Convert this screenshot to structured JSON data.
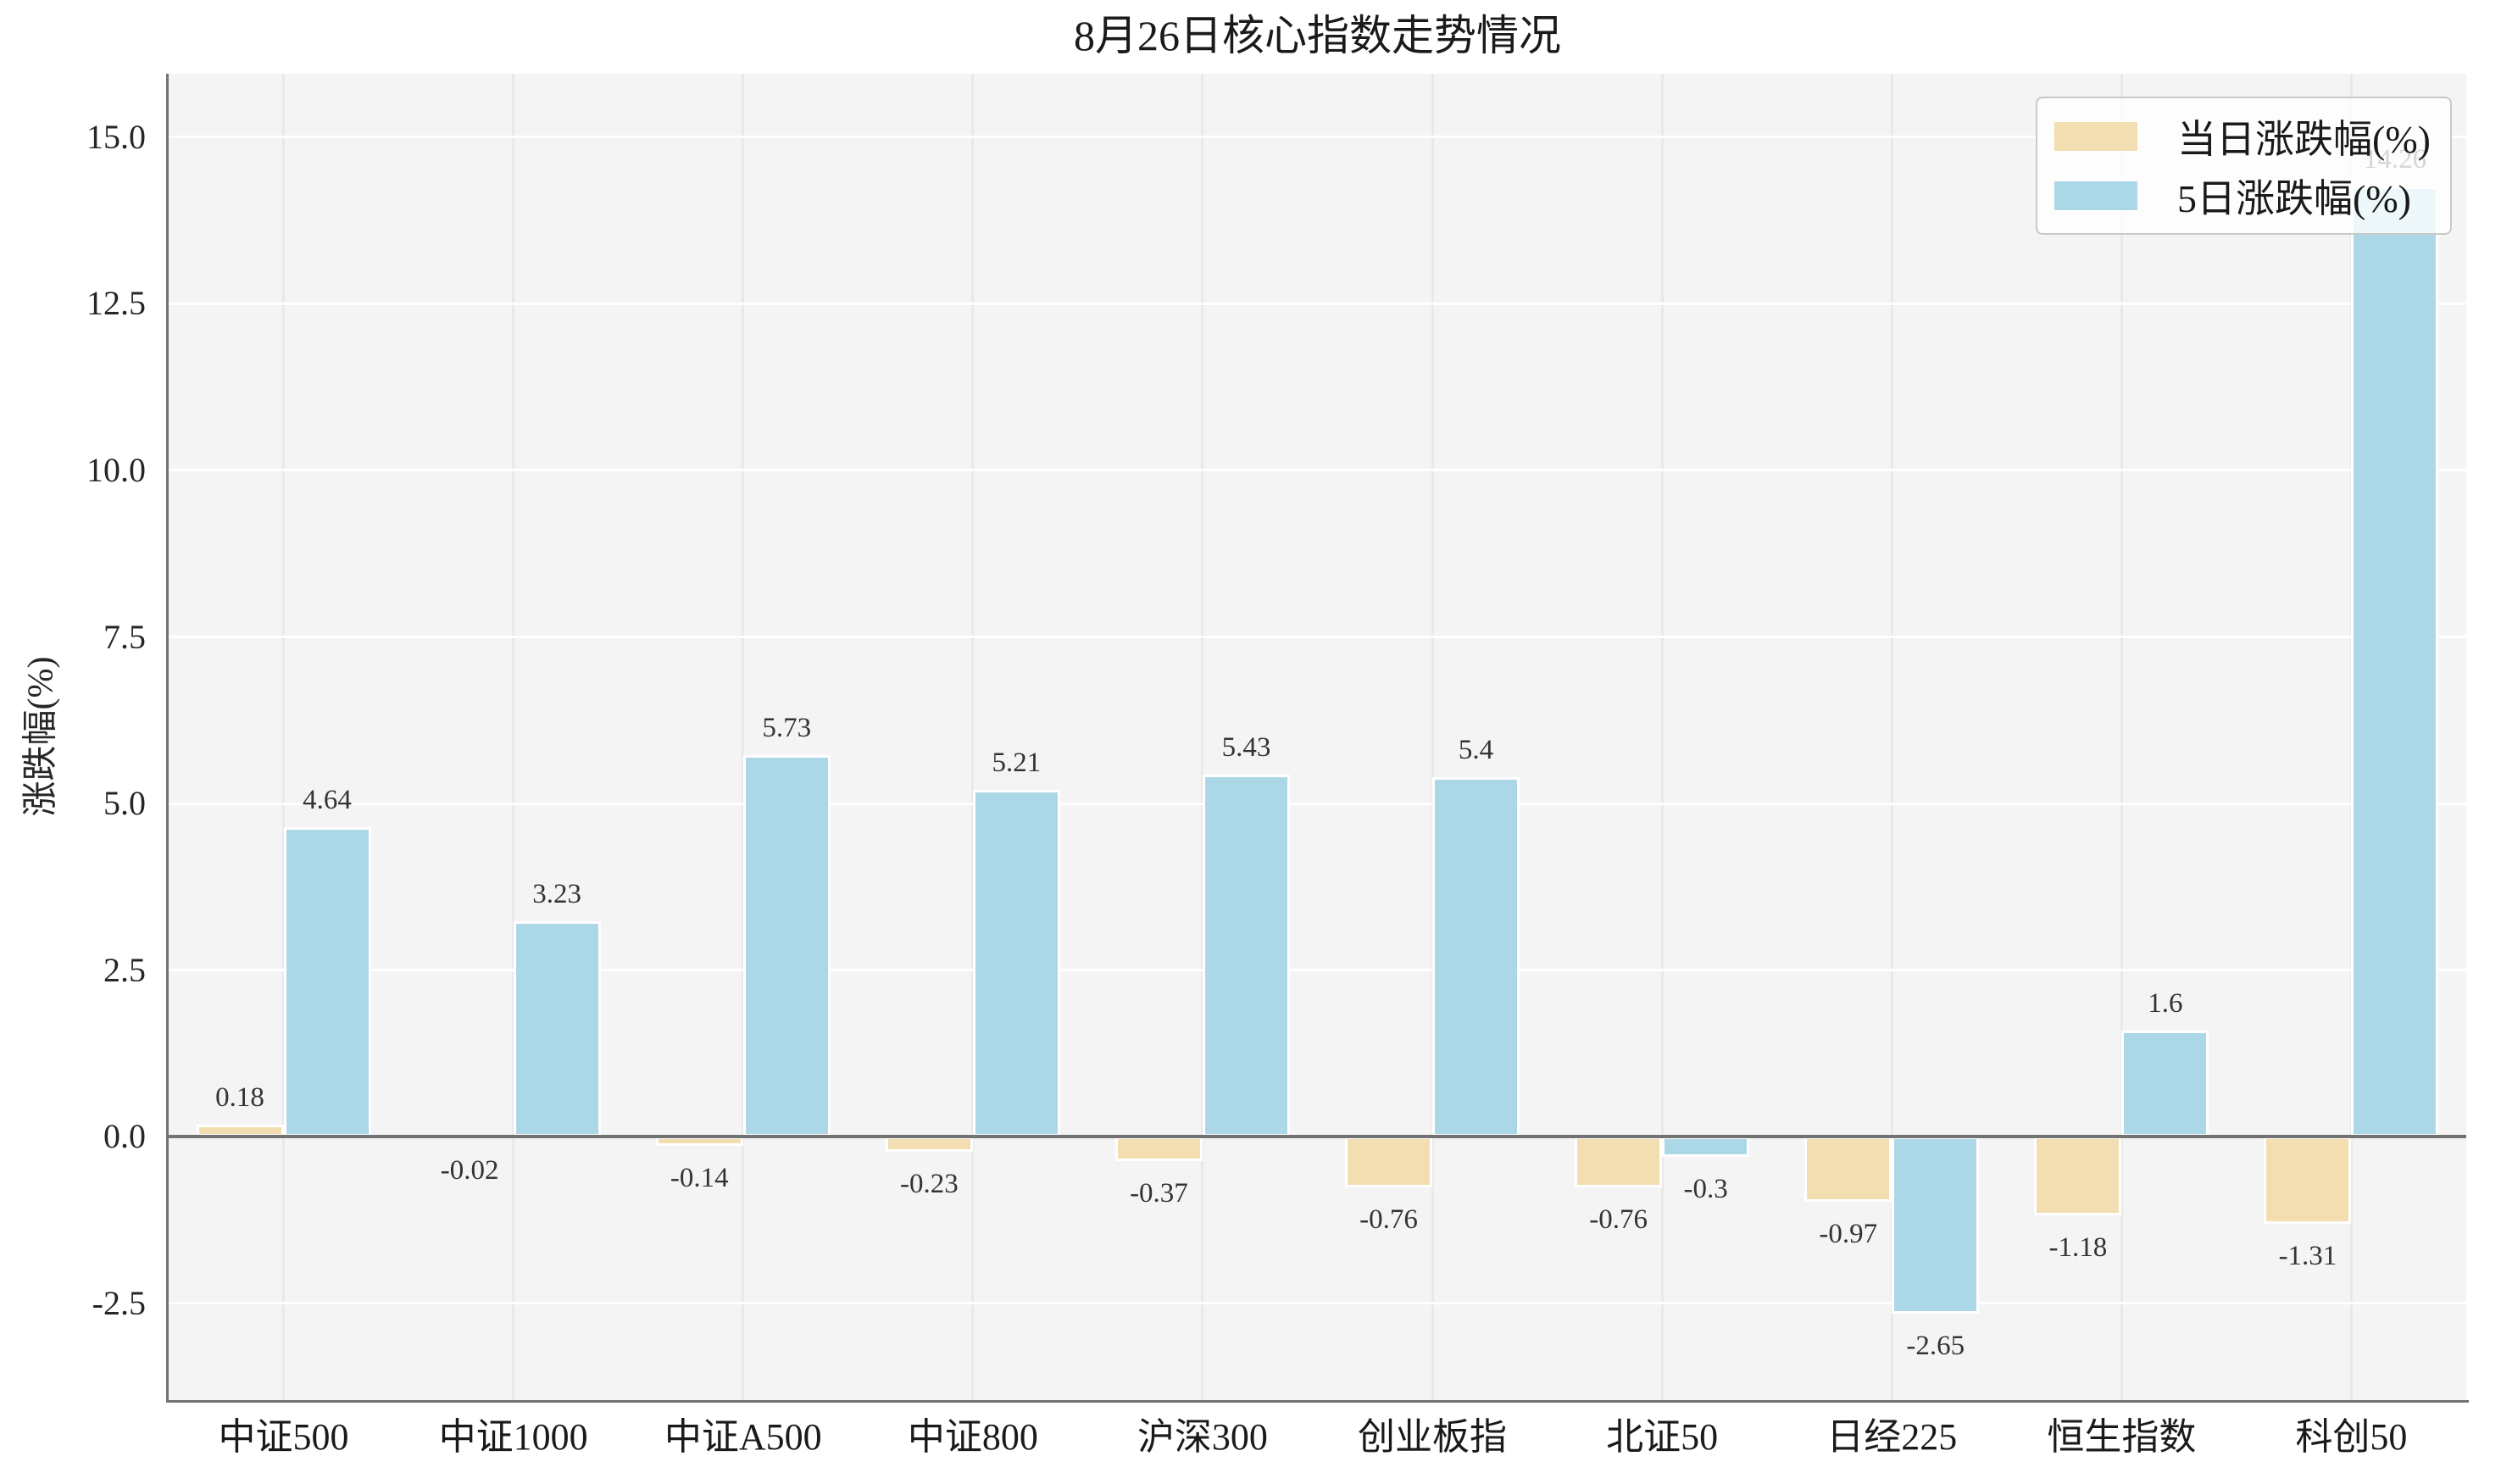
{
  "chart_data": {
    "type": "bar",
    "title": "8月26日核心指数走势情况",
    "ylabel": "涨跌幅(%)",
    "xlabel": "",
    "categories": [
      "中证500",
      "中证1000",
      "中证A500",
      "中证800",
      "沪深300",
      "创业板指",
      "北证50",
      "日经225",
      "恒生指数",
      "科创50"
    ],
    "series": [
      {
        "name": "当日涨跌幅(%)",
        "color": "#F3DEB1",
        "values": [
          0.18,
          -0.02,
          -0.14,
          -0.23,
          -0.37,
          -0.76,
          -0.76,
          -0.97,
          -1.18,
          -1.31
        ],
        "labels": [
          "0.18",
          "-0.02",
          "-0.14",
          "-0.23",
          "-0.37",
          "-0.76",
          "-0.76",
          "-0.97",
          "-1.18",
          "-1.31"
        ]
      },
      {
        "name": "5日涨跌幅(%)",
        "color": "#ACD7E6",
        "values": [
          4.64,
          3.23,
          5.73,
          5.21,
          5.43,
          5.4,
          -0.3,
          -2.65,
          1.6,
          14.26
        ],
        "labels": [
          "4.64",
          "3.23",
          "5.73",
          "5.21",
          "5.43",
          "5.4",
          "-0.3",
          "-2.65",
          "1.6",
          "14.26"
        ]
      }
    ],
    "ylim": [
      -3.95,
      15.95
    ],
    "yticks": [
      {
        "value": 15.0,
        "label": "15.0"
      },
      {
        "value": 12.5,
        "label": "12.5"
      },
      {
        "value": 10.0,
        "label": "10.0"
      },
      {
        "value": 7.5,
        "label": "7.5"
      },
      {
        "value": 5.0,
        "label": "5.0"
      },
      {
        "value": 2.5,
        "label": "2.5"
      },
      {
        "value": 0.0,
        "label": "0.0"
      },
      {
        "value": -2.5,
        "label": "-2.5"
      }
    ],
    "grid": true,
    "legend_position": "top-right",
    "bar_edge_color": "#ffffff"
  },
  "colors": {
    "plot_background": "#f4f4f4",
    "grid_horizontal": "#ffffff",
    "grid_vertical": "#e9e9e9",
    "axis_spine": "#737373",
    "zero_line": "#737373",
    "title_text": "#1a1a1a",
    "tick_text": "#262626",
    "data_label_text": "#333333",
    "legend_border": "#c9c9c9",
    "legend_background": "rgba(255,255,255,0.8)"
  }
}
